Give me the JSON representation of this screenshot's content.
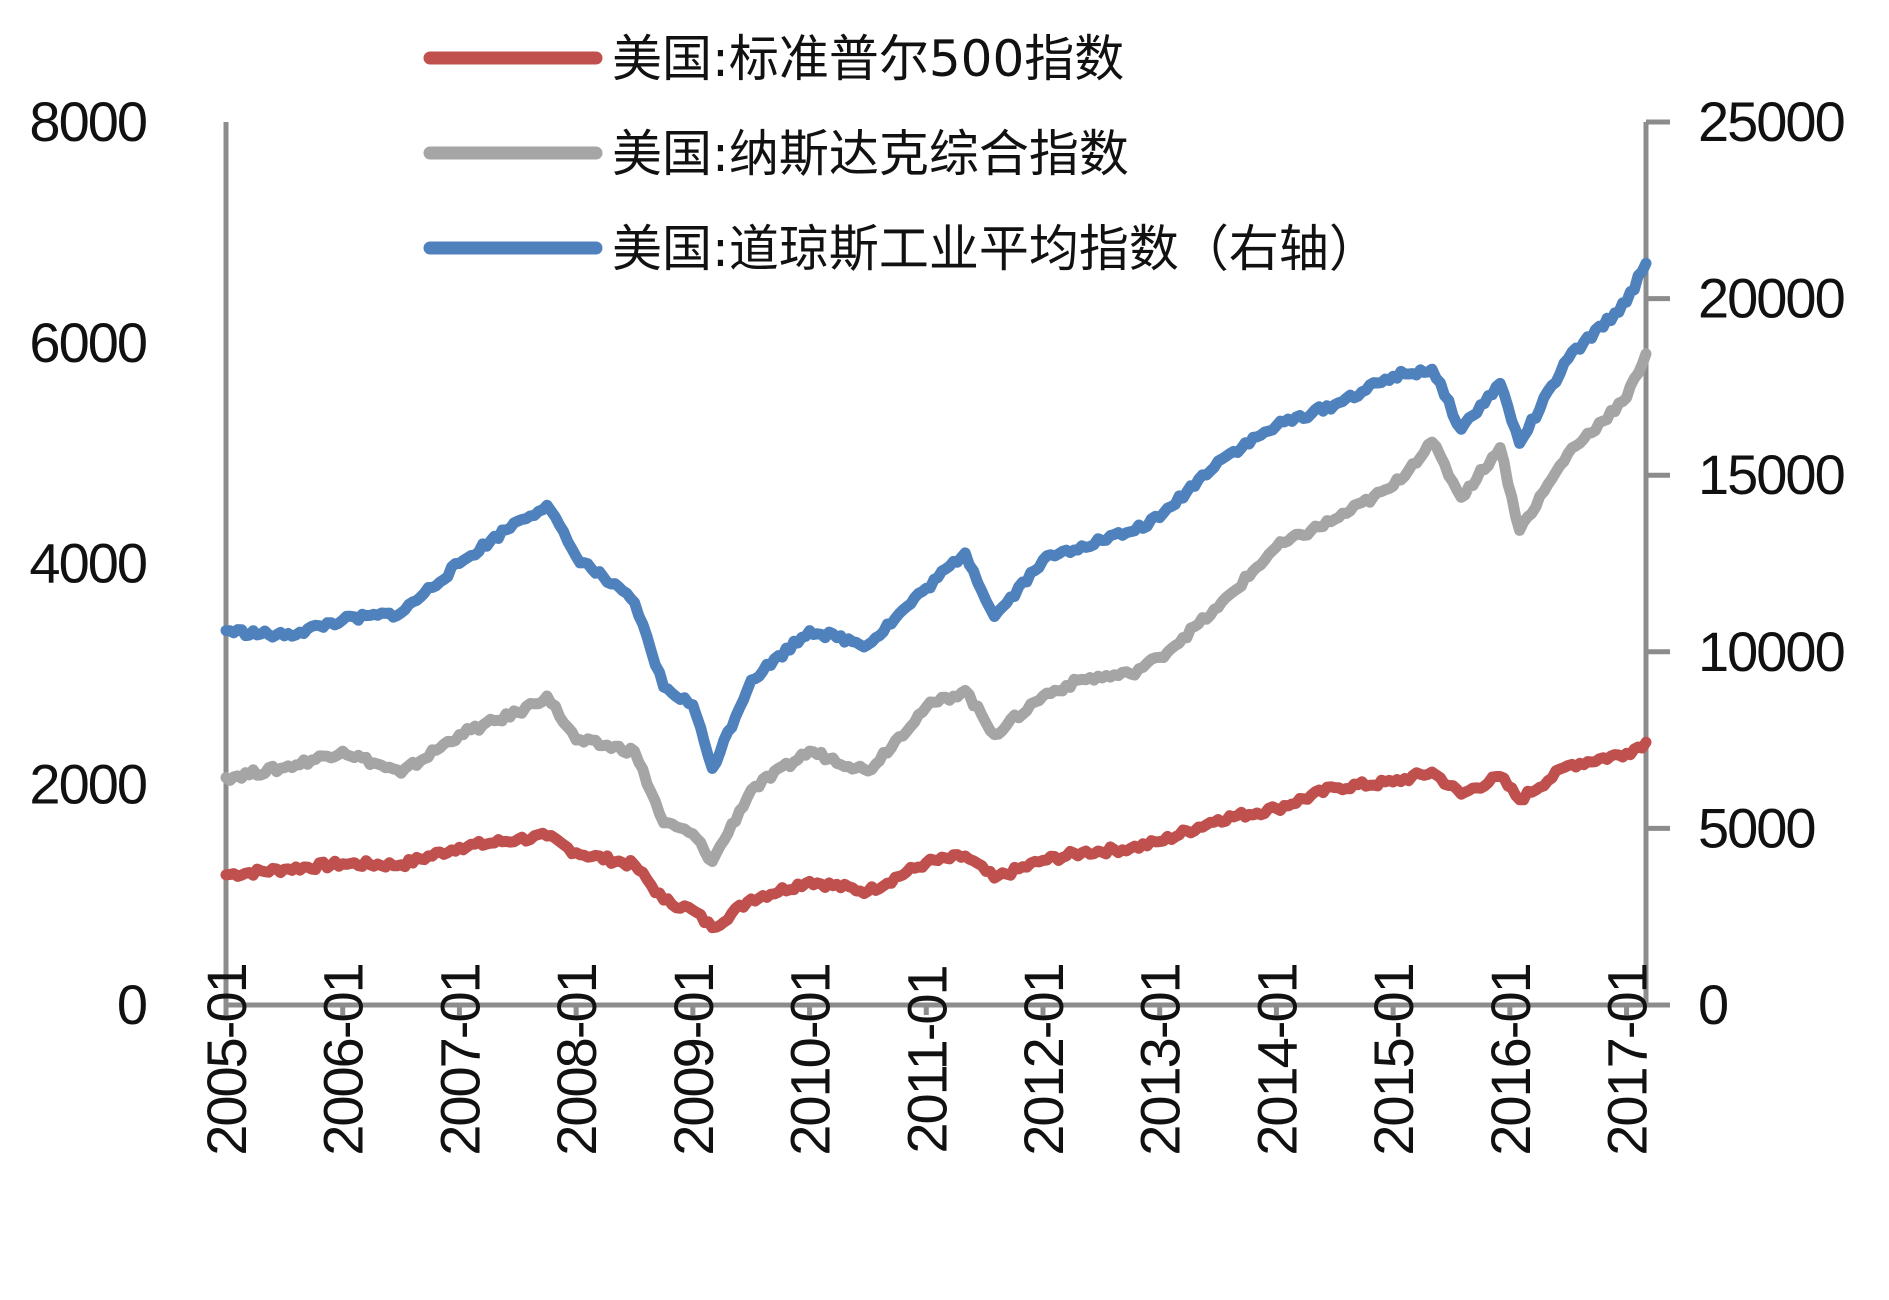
{
  "chart_data": {
    "type": "line",
    "title": "",
    "xlabel": "",
    "ylabel": "",
    "x_ticks": [
      "2005-01",
      "2006-01",
      "2007-01",
      "2008-01",
      "2009-01",
      "2010-01",
      "2011-01",
      "2012-01",
      "2013-01",
      "2014-01",
      "2015-01",
      "2016-01",
      "2017-01"
    ],
    "left_axis": {
      "ticks": [
        "0",
        "2000",
        "4000",
        "6000",
        "8000"
      ],
      "ylim": [
        0,
        8000
      ]
    },
    "right_axis": {
      "ticks": [
        "0",
        "5000",
        "10000",
        "15000",
        "20000",
        "25000"
      ],
      "ylim": [
        0,
        25000
      ]
    },
    "legend_placement": "top-center",
    "grid": false,
    "x": [
      "2005-01",
      "2005-07",
      "2006-01",
      "2006-07",
      "2007-01",
      "2007-07",
      "2007-10",
      "2008-01",
      "2008-07",
      "2008-10",
      "2009-01",
      "2009-03",
      "2009-07",
      "2010-01",
      "2010-07",
      "2011-01",
      "2011-05",
      "2011-08",
      "2012-01",
      "2012-05",
      "2012-10",
      "2013-01",
      "2013-07",
      "2014-01",
      "2014-07",
      "2015-01",
      "2015-05",
      "2015-08",
      "2015-12",
      "2016-02",
      "2016-07",
      "2017-01",
      "2017-03"
    ],
    "series": [
      {
        "name": "美国:标准普尔500指数",
        "axis": "left",
        "color": "#c0504d",
        "values": [
          1180,
          1230,
          1280,
          1270,
          1430,
          1500,
          1530,
          1380,
          1270,
          950,
          860,
          700,
          960,
          1120,
          1030,
          1290,
          1350,
          1150,
          1310,
          1380,
          1420,
          1480,
          1680,
          1780,
          1970,
          2020,
          2110,
          1910,
          2070,
          1860,
          2170,
          2280,
          2380
        ]
      },
      {
        "name": "美国:纳斯达克综合指数",
        "axis": "left",
        "color": "#a5a5a5",
        "values": [
          2060,
          2150,
          2300,
          2100,
          2450,
          2650,
          2800,
          2400,
          2300,
          1650,
          1550,
          1300,
          1950,
          2300,
          2120,
          2700,
          2850,
          2450,
          2800,
          2950,
          3000,
          3150,
          3600,
          4150,
          4400,
          4700,
          5100,
          4600,
          5050,
          4300,
          5000,
          5500,
          5900
        ]
      },
      {
        "name": "美国:道琼斯工业平均指数（右轴）",
        "axis": "right",
        "color": "#4f81bd",
        "values": [
          10600,
          10450,
          10900,
          11100,
          12500,
          13700,
          14150,
          12700,
          11400,
          9000,
          8500,
          6700,
          9200,
          10600,
          10200,
          11800,
          12800,
          11000,
          12600,
          13000,
          13400,
          13800,
          15400,
          16400,
          17000,
          17800,
          18000,
          16300,
          17600,
          15900,
          18300,
          19900,
          21000
        ]
      }
    ]
  }
}
